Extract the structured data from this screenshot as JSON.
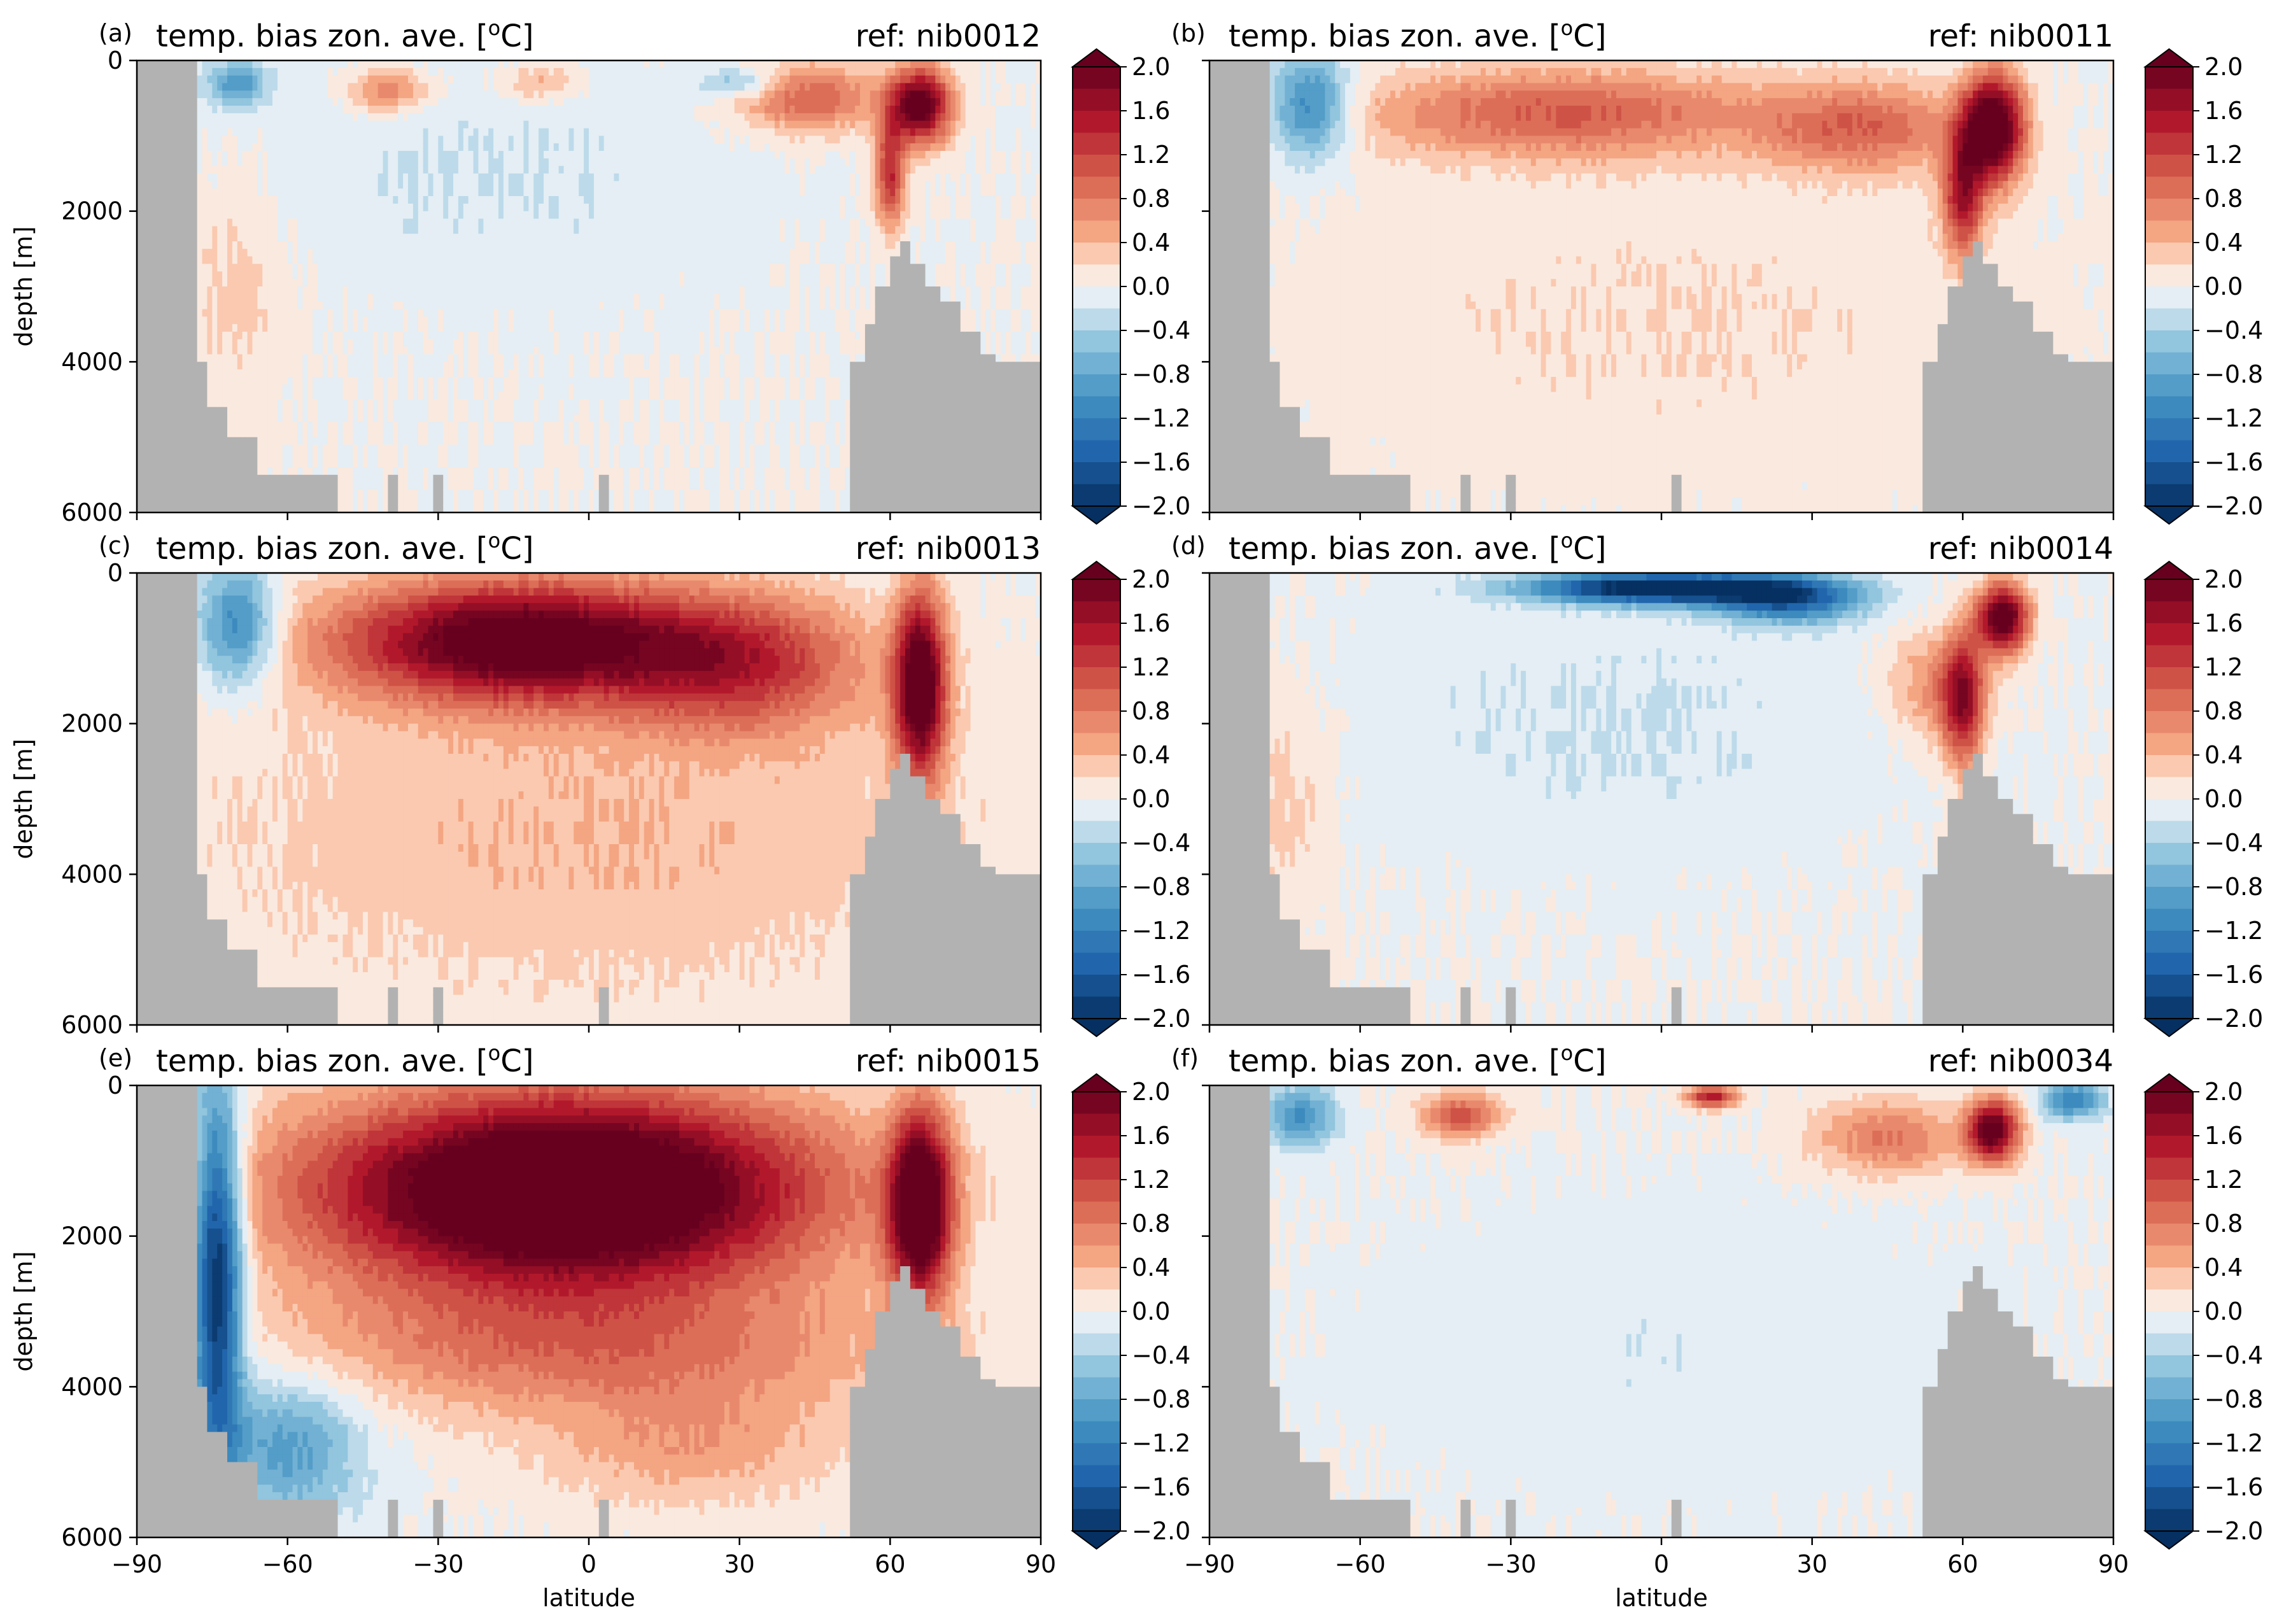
{
  "chart_data": [
    {
      "type": "heatmap",
      "panel_label": "(a)",
      "title_left": "temp. bias zon. ave. [",
      "title_unit_sup": "o",
      "title_unit_after": "C]",
      "title_right": "ref: nib0012",
      "ylabel": "depth [m]",
      "xlabel": "",
      "xlim": [
        -90,
        90
      ],
      "ylim": [
        6000,
        0
      ],
      "blobs": [
        {
          "lat": 66,
          "depth": 600,
          "rx": 6,
          "ry": 500,
          "value": 2.2
        },
        {
          "lat": 60,
          "depth": 1500,
          "rx": 3,
          "ry": 700,
          "value": 1.4
        },
        {
          "lat": 44,
          "depth": 500,
          "rx": 14,
          "ry": 450,
          "value": 1.0
        },
        {
          "lat": -40,
          "depth": 400,
          "rx": 8,
          "ry": 300,
          "value": 0.8
        },
        {
          "lat": -10,
          "depth": 300,
          "rx": 8,
          "ry": 250,
          "value": 0.5
        },
        {
          "lat": -70,
          "depth": 300,
          "rx": 6,
          "ry": 300,
          "value": -0.9
        },
        {
          "lat": -20,
          "depth": 1500,
          "rx": 50,
          "ry": 1600,
          "value": -0.2
        },
        {
          "lat": -70,
          "depth": 3000,
          "rx": 10,
          "ry": 1500,
          "value": 0.3
        },
        {
          "lat": 30,
          "depth": 300,
          "rx": 8,
          "ry": 200,
          "value": -0.6
        }
      ]
    },
    {
      "type": "heatmap",
      "panel_label": "(b)",
      "title_left": "temp. bias zon. ave. [",
      "title_unit_sup": "o",
      "title_unit_after": "C]",
      "title_right": "ref: nib0011",
      "ylabel": "",
      "xlabel": "",
      "xlim": [
        -90,
        90
      ],
      "ylim": [
        6000,
        0
      ],
      "blobs": [
        {
          "lat": 66,
          "depth": 900,
          "rx": 6,
          "ry": 700,
          "value": 2.5
        },
        {
          "lat": 60,
          "depth": 1800,
          "rx": 4,
          "ry": 800,
          "value": 1.5
        },
        {
          "lat": -20,
          "depth": 700,
          "rx": 40,
          "ry": 600,
          "value": 1.0
        },
        {
          "lat": 40,
          "depth": 900,
          "rx": 20,
          "ry": 600,
          "value": 0.9
        },
        {
          "lat": -70,
          "depth": 600,
          "rx": 8,
          "ry": 700,
          "value": -1.2
        },
        {
          "lat": 0,
          "depth": 3500,
          "rx": 70,
          "ry": 2000,
          "value": 0.2
        }
      ]
    },
    {
      "type": "heatmap",
      "panel_label": "(c)",
      "title_left": "temp. bias zon. ave. [",
      "title_unit_sup": "o",
      "title_unit_after": "C]",
      "title_right": "ref: nib0013",
      "ylabel": "depth [m]",
      "xlabel": "",
      "xlim": [
        -90,
        90
      ],
      "ylim": [
        6000,
        0
      ],
      "blobs": [
        {
          "lat": -15,
          "depth": 900,
          "rx": 35,
          "ry": 800,
          "value": 2.3
        },
        {
          "lat": 66,
          "depth": 1500,
          "rx": 5,
          "ry": 1200,
          "value": 2.4
        },
        {
          "lat": 30,
          "depth": 1200,
          "rx": 25,
          "ry": 900,
          "value": 1.2
        },
        {
          "lat": -70,
          "depth": 700,
          "rx": 8,
          "ry": 800,
          "value": -1.2
        },
        {
          "lat": 0,
          "depth": 3500,
          "rx": 80,
          "ry": 2200,
          "value": 0.4
        }
      ]
    },
    {
      "type": "heatmap",
      "panel_label": "(d)",
      "title_left": "temp. bias zon. ave. [",
      "title_unit_sup": "o",
      "title_unit_after": "C]",
      "title_right": "ref: nib0014",
      "ylabel": "",
      "xlabel": "",
      "xlim": [
        -90,
        90
      ],
      "ylim": [
        6000,
        0
      ],
      "blobs": [
        {
          "lat": 0,
          "depth": 200,
          "rx": 25,
          "ry": 200,
          "value": -2.4
        },
        {
          "lat": 25,
          "depth": 350,
          "rx": 15,
          "ry": 300,
          "value": -1.5
        },
        {
          "lat": 68,
          "depth": 600,
          "rx": 5,
          "ry": 450,
          "value": 2.3
        },
        {
          "lat": 60,
          "depth": 1700,
          "rx": 4,
          "ry": 900,
          "value": 1.5
        },
        {
          "lat": 55,
          "depth": 1500,
          "rx": 10,
          "ry": 700,
          "value": 0.7
        },
        {
          "lat": -10,
          "depth": 2000,
          "rx": 60,
          "ry": 1800,
          "value": -0.2
        },
        {
          "lat": -75,
          "depth": 3000,
          "rx": 10,
          "ry": 1500,
          "value": 0.3
        }
      ]
    },
    {
      "type": "heatmap",
      "panel_label": "(e)",
      "title_left": "temp. bias zon. ave. [",
      "title_unit_sup": "o",
      "title_unit_after": "C]",
      "title_right": "ref: nib0015",
      "ylabel": "depth [m]",
      "xlabel": "latitude",
      "xlim": [
        -90,
        90
      ],
      "ylim": [
        6000,
        0
      ],
      "blobs": [
        {
          "lat": -5,
          "depth": 1400,
          "rx": 50,
          "ry": 1300,
          "value": 3.0
        },
        {
          "lat": 66,
          "depth": 1600,
          "rx": 6,
          "ry": 1200,
          "value": 2.6
        },
        {
          "lat": 0,
          "depth": 3500,
          "rx": 60,
          "ry": 900,
          "value": 0.8
        },
        {
          "lat": -74,
          "depth": 2500,
          "rx": 5,
          "ry": 2500,
          "value": -2.2
        },
        {
          "lat": -60,
          "depth": 4800,
          "rx": 15,
          "ry": 1000,
          "value": -0.9
        },
        {
          "lat": 20,
          "depth": 4800,
          "rx": 30,
          "ry": 800,
          "value": 0.5
        }
      ]
    },
    {
      "type": "heatmap",
      "panel_label": "(f)",
      "title_left": "temp. bias zon. ave. [",
      "title_unit_sup": "o",
      "title_unit_after": "C]",
      "title_right": "ref: nib0034",
      "ylabel": "",
      "xlabel": "latitude",
      "xlim": [
        -90,
        90
      ],
      "ylim": [
        6000,
        0
      ],
      "blobs": [
        {
          "lat": -40,
          "depth": 400,
          "rx": 8,
          "ry": 300,
          "value": 1.1
        },
        {
          "lat": 66,
          "depth": 600,
          "rx": 5,
          "ry": 400,
          "value": 2.2
        },
        {
          "lat": 45,
          "depth": 700,
          "rx": 15,
          "ry": 500,
          "value": 0.8
        },
        {
          "lat": 10,
          "depth": 150,
          "rx": 5,
          "ry": 150,
          "value": 1.5
        },
        {
          "lat": -72,
          "depth": 400,
          "rx": 7,
          "ry": 400,
          "value": -1.0
        },
        {
          "lat": 82,
          "depth": 200,
          "rx": 6,
          "ry": 250,
          "value": -1.2
        },
        {
          "lat": 0,
          "depth": 3500,
          "rx": 60,
          "ry": 2000,
          "value": -0.15
        }
      ]
    }
  ],
  "axes": {
    "xticks": [
      "−90",
      "−60",
      "−30",
      "0",
      "30",
      "60",
      "90"
    ],
    "xtick_values": [
      -90,
      -60,
      -30,
      0,
      30,
      60,
      90
    ],
    "yticks": [
      "0",
      "2000",
      "4000",
      "6000"
    ],
    "ytick_values": [
      0,
      2000,
      4000,
      6000
    ]
  },
  "colorbar": {
    "ticks": [
      "2.0",
      "1.6",
      "1.2",
      "0.8",
      "0.4",
      "0.0",
      "−0.4",
      "−0.8",
      "−1.2",
      "−1.6",
      "−2.0"
    ],
    "tick_values": [
      2.0,
      1.6,
      1.2,
      0.8,
      0.4,
      0.0,
      -0.4,
      -0.8,
      -1.2,
      -1.6,
      -2.0
    ],
    "range": [
      -2.0,
      2.0
    ],
    "levels": 20,
    "extend": "both",
    "cmap": "RdBu_r",
    "land_color": "#b2b2b2"
  }
}
